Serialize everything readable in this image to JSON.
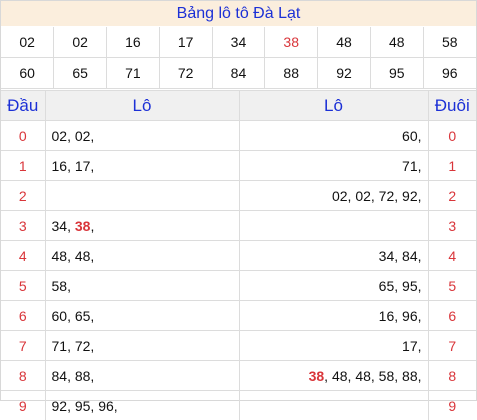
{
  "title": "Bảng lô tô Đà Lạt",
  "numbers_row1": [
    {
      "v": "02",
      "hl": false
    },
    {
      "v": "02",
      "hl": false
    },
    {
      "v": "16",
      "hl": false
    },
    {
      "v": "17",
      "hl": false
    },
    {
      "v": "34",
      "hl": false
    },
    {
      "v": "38",
      "hl": true
    },
    {
      "v": "48",
      "hl": false
    },
    {
      "v": "48",
      "hl": false
    },
    {
      "v": "58",
      "hl": false
    }
  ],
  "numbers_row2": [
    {
      "v": "60",
      "hl": false
    },
    {
      "v": "65",
      "hl": false
    },
    {
      "v": "71",
      "hl": false
    },
    {
      "v": "72",
      "hl": false
    },
    {
      "v": "84",
      "hl": false
    },
    {
      "v": "88",
      "hl": false
    },
    {
      "v": "92",
      "hl": false
    },
    {
      "v": "95",
      "hl": false
    },
    {
      "v": "96",
      "hl": false
    }
  ],
  "headers": {
    "dau": "Đầu",
    "lo_left": "Lô",
    "lo_right": "Lô",
    "duoi": "Đuôi"
  },
  "rows": [
    {
      "dau": "0",
      "left": [
        {
          "t": "02, "
        },
        {
          "t": "02, "
        }
      ],
      "right": [
        {
          "t": "60, "
        }
      ],
      "duoi": "0"
    },
    {
      "dau": "1",
      "left": [
        {
          "t": "16, "
        },
        {
          "t": "17, "
        }
      ],
      "right": [
        {
          "t": "71, "
        }
      ],
      "duoi": "1"
    },
    {
      "dau": "2",
      "left": [],
      "right": [
        {
          "t": "02, "
        },
        {
          "t": "02, "
        },
        {
          "t": "72, "
        },
        {
          "t": "92, "
        }
      ],
      "duoi": "2"
    },
    {
      "dau": "3",
      "left": [
        {
          "t": "34, "
        },
        {
          "t": "38",
          "hot": true
        },
        {
          "t": ", "
        }
      ],
      "right": [],
      "duoi": "3"
    },
    {
      "dau": "4",
      "left": [
        {
          "t": "48, "
        },
        {
          "t": "48, "
        }
      ],
      "right": [
        {
          "t": "34, "
        },
        {
          "t": "84, "
        }
      ],
      "duoi": "4"
    },
    {
      "dau": "5",
      "left": [
        {
          "t": "58, "
        }
      ],
      "right": [
        {
          "t": "65, "
        },
        {
          "t": "95, "
        }
      ],
      "duoi": "5"
    },
    {
      "dau": "6",
      "left": [
        {
          "t": "60, "
        },
        {
          "t": "65, "
        }
      ],
      "right": [
        {
          "t": "16, "
        },
        {
          "t": "96, "
        }
      ],
      "duoi": "6"
    },
    {
      "dau": "7",
      "left": [
        {
          "t": "71, "
        },
        {
          "t": "72, "
        }
      ],
      "right": [
        {
          "t": "17, "
        }
      ],
      "duoi": "7"
    },
    {
      "dau": "8",
      "left": [
        {
          "t": "84, "
        },
        {
          "t": "88, "
        }
      ],
      "right": [
        {
          "t": "38",
          "hot": true
        },
        {
          "t": ", "
        },
        {
          "t": "48, "
        },
        {
          "t": "48, "
        },
        {
          "t": "58, "
        },
        {
          "t": "88, "
        }
      ],
      "duoi": "8"
    },
    {
      "dau": "9",
      "left": [
        {
          "t": "92, "
        },
        {
          "t": "95, "
        },
        {
          "t": "96, "
        }
      ],
      "right": [],
      "duoi": "9"
    }
  ]
}
